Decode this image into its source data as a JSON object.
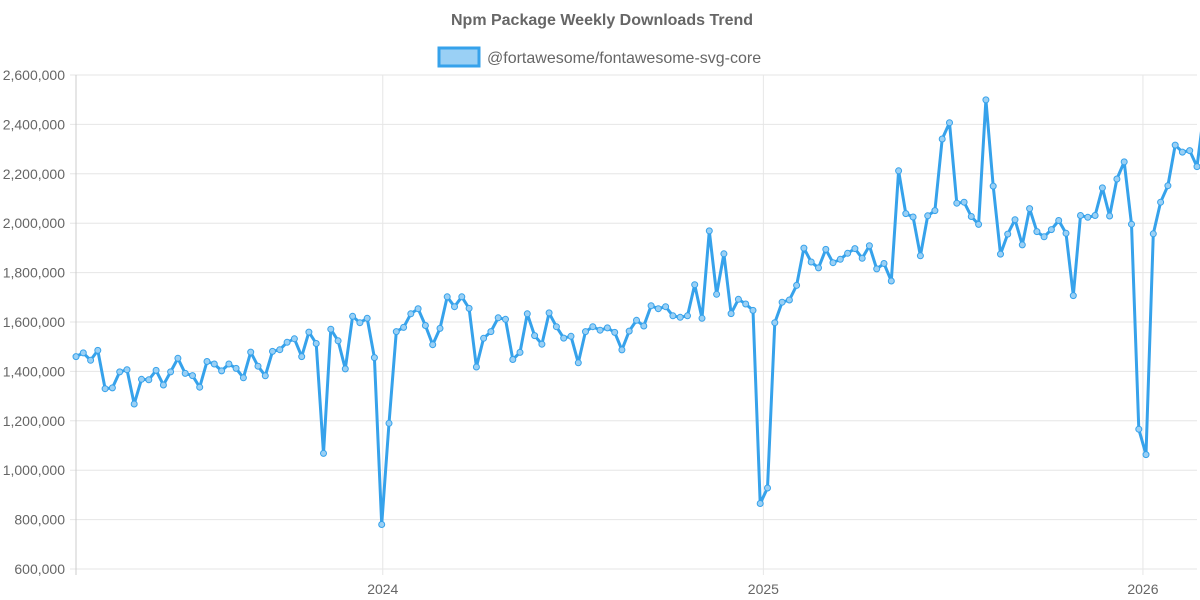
{
  "chart_data": {
    "type": "line",
    "title": "Npm Package Weekly Downloads Trend",
    "xlabel": "",
    "ylabel": "",
    "ylim": [
      600000,
      2600000
    ],
    "xlim": [
      "2023-03-12",
      "2026-02-22"
    ],
    "y_ticks": [
      "600,000",
      "800,000",
      "1,000,000",
      "1,200,000",
      "1,400,000",
      "1,600,000",
      "1,800,000",
      "2,000,000",
      "2,200,000",
      "2,400,000",
      "2,600,000"
    ],
    "x_ticks": [
      "2024",
      "2025",
      "2026"
    ],
    "grid": true,
    "legend_position": "top-center",
    "colors": {
      "line": "#36a2eb",
      "fill": "#9ad0f5",
      "grid": "#e6e6e6",
      "text": "#666666"
    },
    "series": [
      {
        "name": "@fortawesome/fontawesome-svg-core",
        "start_date": "2023-03-12",
        "interval_days": 7,
        "values": [
          1460000,
          1475000,
          1445000,
          1485000,
          1330000,
          1333000,
          1398000,
          1407000,
          1268000,
          1368000,
          1366000,
          1404000,
          1345000,
          1398000,
          1453000,
          1392000,
          1383000,
          1336000,
          1440000,
          1430000,
          1402000,
          1430000,
          1412000,
          1374000,
          1478000,
          1421000,
          1382000,
          1481000,
          1488000,
          1518000,
          1532000,
          1460000,
          1559000,
          1513000,
          1068000,
          1571000,
          1524000,
          1410000,
          1623000,
          1597000,
          1615000,
          1456000,
          780000,
          1190000,
          1561000,
          1578000,
          1633000,
          1654000,
          1586000,
          1508000,
          1574000,
          1702000,
          1662000,
          1702000,
          1655000,
          1418000,
          1534000,
          1561000,
          1617000,
          1611000,
          1448000,
          1477000,
          1633000,
          1545000,
          1510000,
          1637000,
          1581000,
          1535000,
          1542000,
          1435000,
          1561000,
          1581000,
          1567000,
          1576000,
          1558000,
          1487000,
          1563000,
          1607000,
          1584000,
          1666000,
          1654000,
          1662000,
          1625000,
          1619000,
          1625000,
          1751000,
          1615000,
          1969000,
          1712000,
          1876000,
          1634000,
          1692000,
          1673000,
          1647000,
          865000,
          928000,
          1597000,
          1680000,
          1689000,
          1748000,
          1899000,
          1843000,
          1819000,
          1894000,
          1840000,
          1854000,
          1878000,
          1897000,
          1858000,
          1909000,
          1815000,
          1837000,
          1766000,
          2212000,
          2039000,
          2025000,
          1868000,
          2030000,
          2051000,
          2341000,
          2407000,
          2081000,
          2085000,
          2027000,
          1995000,
          2499000,
          2150000,
          1875000,
          1956000,
          2014000,
          1912000,
          2059000,
          1966000,
          1945000,
          1974000,
          2011000,
          1959000,
          1707000,
          2031000,
          2024000,
          2031000,
          2143000,
          2029000,
          2179000,
          2248000,
          1996000,
          1166000,
          1063000,
          1957000,
          2085000,
          2152000,
          2316000,
          2288000,
          2294000,
          2229000,
          2461000
        ]
      }
    ]
  }
}
